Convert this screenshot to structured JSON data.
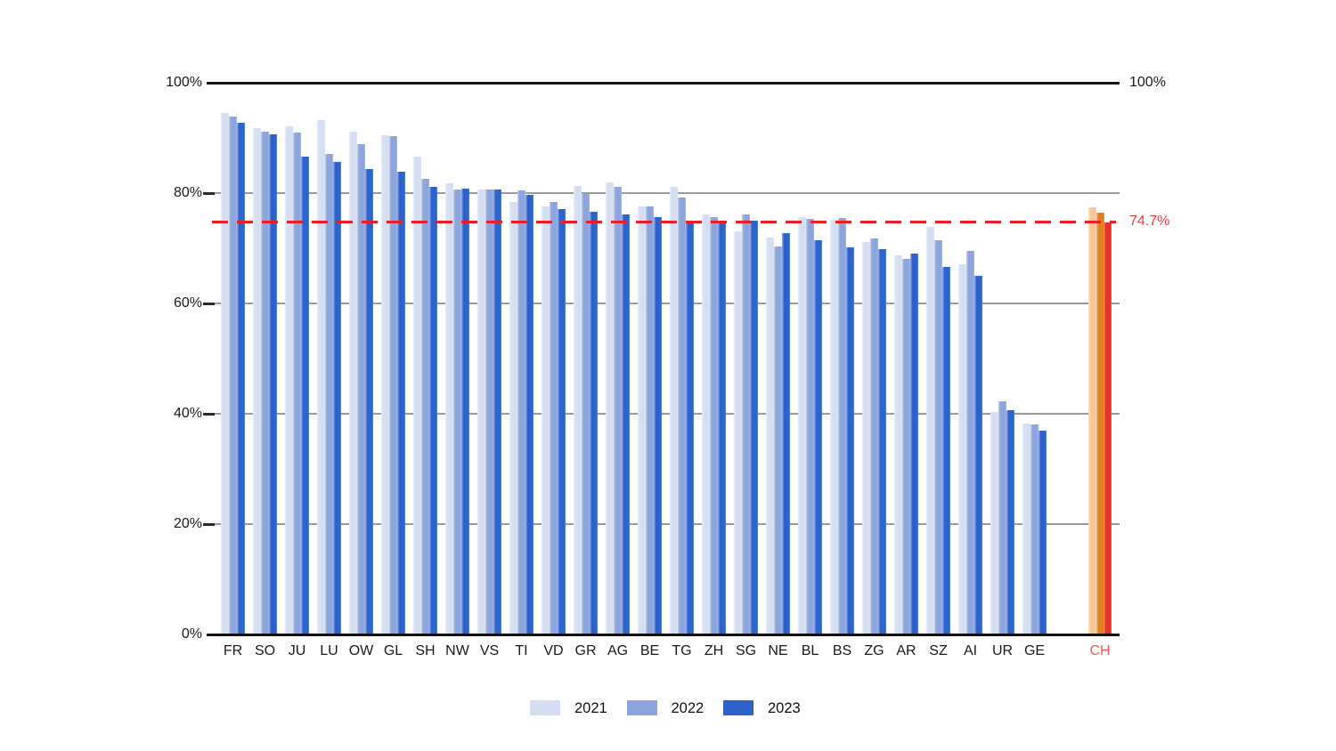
{
  "chart_data": {
    "type": "bar",
    "title": "",
    "categories": [
      "FR",
      "SO",
      "JU",
      "LU",
      "OW",
      "GL",
      "SH",
      "NW",
      "VS",
      "TI",
      "VD",
      "GR",
      "AG",
      "BE",
      "TG",
      "ZH",
      "SG",
      "NE",
      "BL",
      "BS",
      "ZG",
      "AR",
      "SZ",
      "AI",
      "UR",
      "GE"
    ],
    "series": [
      {
        "name": "2021",
        "color": "#d5def2",
        "values": [
          94.5,
          91.7,
          92.1,
          93.2,
          91.2,
          90.5,
          86.6,
          81.7,
          80.6,
          78.4,
          77.6,
          81.3,
          82.0,
          77.6,
          81.2,
          76.2,
          73.0,
          71.9,
          75.7,
          75.2,
          71.1,
          68.7,
          73.8,
          67.1,
          40.3,
          38.3
        ]
      },
      {
        "name": "2022",
        "color": "#8ca5de",
        "values": [
          93.9,
          91.1,
          90.9,
          87.1,
          88.8,
          90.4,
          82.6,
          80.7,
          80.7,
          80.5,
          78.4,
          79.8,
          81.1,
          77.6,
          79.2,
          75.7,
          76.1,
          70.4,
          75.3,
          75.5,
          71.7,
          68.0,
          71.5,
          69.5,
          42.2,
          38.1
        ]
      },
      {
        "name": "2023",
        "color": "#2e63cc",
        "values": [
          92.8,
          90.7,
          86.6,
          85.7,
          84.3,
          83.8,
          81.2,
          80.8,
          80.6,
          79.7,
          77.1,
          76.6,
          76.1,
          75.6,
          74.9,
          74.8,
          75.0,
          72.7,
          71.4,
          70.2,
          69.8,
          69.0,
          66.6,
          65.0,
          40.7,
          37.0
        ]
      }
    ],
    "highlight_group": {
      "label": "CH",
      "label_color": "#f4555b",
      "bars": [
        {
          "name": "2021",
          "color": "#f9c795",
          "value": 77.4
        },
        {
          "name": "2022",
          "color": "#e1811d",
          "value": 76.5
        },
        {
          "name": "2023",
          "color": "#ea3325",
          "value": 74.7
        }
      ]
    },
    "reference_line": {
      "value": 74.7,
      "label": "74.7%",
      "color": "#ee1c25",
      "label_color": "#e5403f"
    },
    "y_axis": {
      "min": 0,
      "max": 100,
      "tick_step": 20,
      "tick_labels": [
        "0%",
        "20%",
        "40%",
        "60%",
        "80%",
        "100%"
      ],
      "right_top_label": "100%"
    },
    "grid": true,
    "legend": {
      "position": "bottom"
    }
  },
  "colors": {
    "background": "#ffffff",
    "gridline": "#9b9b9b",
    "axis": "#111111",
    "text": "#1a1a1a"
  }
}
